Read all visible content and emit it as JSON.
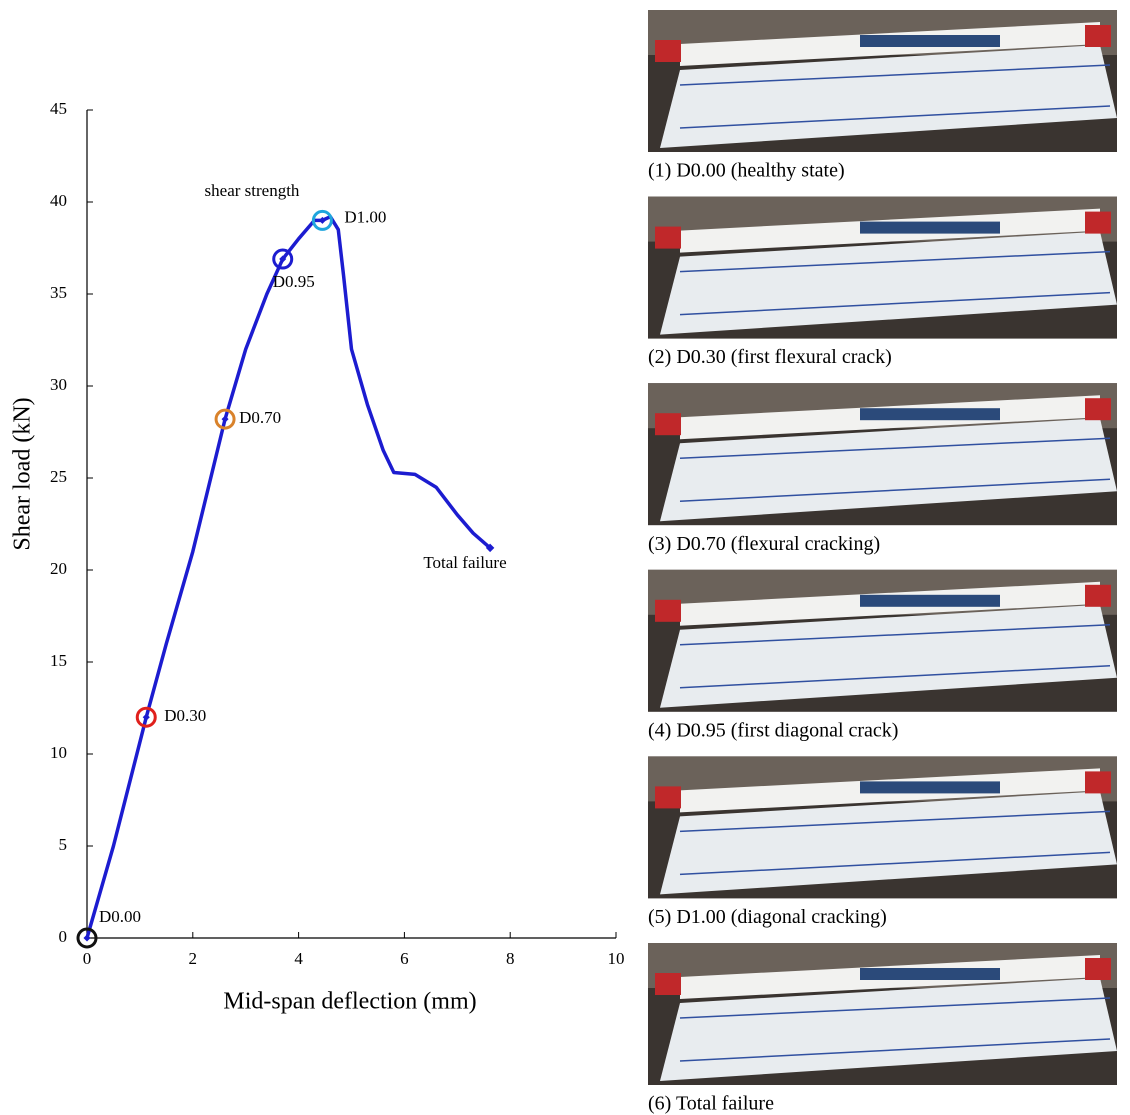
{
  "chart_data": {
    "type": "line",
    "x_label": "Mid-span deflection (mm)",
    "y_label": "Shear load (kN)",
    "xlim": [
      0,
      10
    ],
    "xticks": [
      0,
      2,
      4,
      6,
      8,
      10
    ],
    "ylim": [
      0,
      45
    ],
    "yticks": [
      0,
      5,
      10,
      15,
      20,
      25,
      30,
      35,
      40,
      45
    ],
    "series": [
      {
        "color": "#1c1cd0",
        "x": [
          0,
          0.5,
          1.12,
          1.5,
          2.0,
          2.61,
          3.0,
          3.4,
          3.7,
          4.0,
          4.3,
          4.45,
          4.6,
          4.75,
          4.85,
          5.0,
          5.3,
          5.6,
          5.8,
          6.2,
          6.6,
          7.0,
          7.3,
          7.62
        ],
        "values": [
          0,
          5,
          12,
          16,
          21,
          28.2,
          32,
          35,
          36.9,
          38,
          39,
          39,
          39.2,
          38.5,
          36,
          32,
          29,
          26.5,
          25.3,
          25.2,
          24.5,
          23,
          22,
          21.2
        ]
      }
    ],
    "points": [
      {
        "label": "D0.00",
        "x": 0,
        "y": 0,
        "color": "#111111"
      },
      {
        "label": "D0.30",
        "x": 1.12,
        "y": 12,
        "color": "#e0201c"
      },
      {
        "label": "D0.70",
        "x": 2.61,
        "y": 28.2,
        "color": "#d9822b"
      },
      {
        "label": "D0.95",
        "x": 3.7,
        "y": 36.9,
        "color": "#1c1cd0"
      },
      {
        "label": "D1.00",
        "x": 4.45,
        "y": 39,
        "color": "#1fa5dd"
      }
    ],
    "annotations": [
      "shear strength",
      "Total failure"
    ]
  },
  "photos": [
    {
      "caption": "(1) D0.00 (healthy state)",
      "color": "#111111"
    },
    {
      "caption": "(2) D0.30 (first flexural crack)",
      "color": "#e0201c"
    },
    {
      "caption": "(3) D0.70 (flexural cracking)",
      "color": "#d9822b"
    },
    {
      "caption": "(4) D0.95 (first diagonal crack)",
      "color": "#1c1cd0"
    },
    {
      "caption": "(5) D1.00 (diagonal cracking)",
      "color": "#1fa5dd"
    },
    {
      "caption": "(6) Total failure",
      "color": "#111111"
    }
  ]
}
